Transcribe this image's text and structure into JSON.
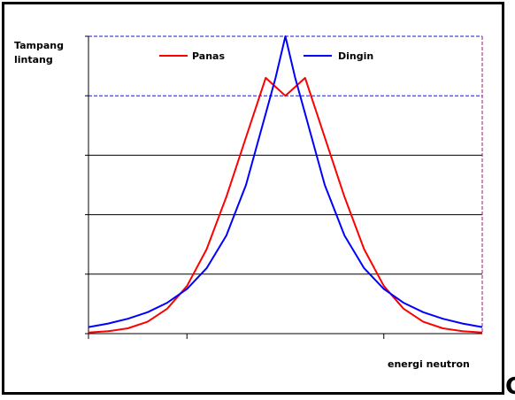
{
  "chart_data": {
    "type": "line",
    "title": "",
    "ylabel_lines": [
      "Tampang",
      "lintang"
    ],
    "xlabel": "energi neutron",
    "xlim": [
      -4,
      4
    ],
    "ylim": [
      0,
      5
    ],
    "grid": true,
    "legend_position": "top",
    "series": [
      {
        "name": "Panas",
        "color": "#ff0000",
        "x": [
          -4,
          -3.6,
          -3.2,
          -2.8,
          -2.4,
          -2.0,
          -1.6,
          -1.2,
          -0.8,
          -0.4,
          0,
          0.4,
          0.8,
          1.2,
          1.6,
          2.0,
          2.4,
          2.8,
          3.2,
          3.6,
          4
        ],
        "y": [
          0.02,
          0.04,
          0.09,
          0.2,
          0.42,
          0.8,
          1.42,
          2.3,
          3.3,
          4.3,
          4.0,
          4.3,
          3.3,
          2.3,
          1.42,
          0.8,
          0.42,
          0.2,
          0.09,
          0.04,
          0.02
        ]
      },
      {
        "name": "Dingin",
        "color": "#0000ff",
        "x": [
          -4,
          -3.6,
          -3.2,
          -2.8,
          -2.4,
          -2.0,
          -1.6,
          -1.2,
          -0.8,
          -0.4,
          -0.2,
          0,
          0.2,
          0.4,
          0.8,
          1.2,
          1.6,
          2.0,
          2.4,
          2.8,
          3.2,
          3.6,
          4
        ],
        "y": [
          0.11,
          0.17,
          0.25,
          0.36,
          0.52,
          0.75,
          1.1,
          1.65,
          2.5,
          3.7,
          4.3,
          5.0,
          4.3,
          3.7,
          2.5,
          1.65,
          1.1,
          0.75,
          0.52,
          0.36,
          0.25,
          0.17,
          0.11
        ]
      }
    ]
  },
  "corner_glyph": "C"
}
